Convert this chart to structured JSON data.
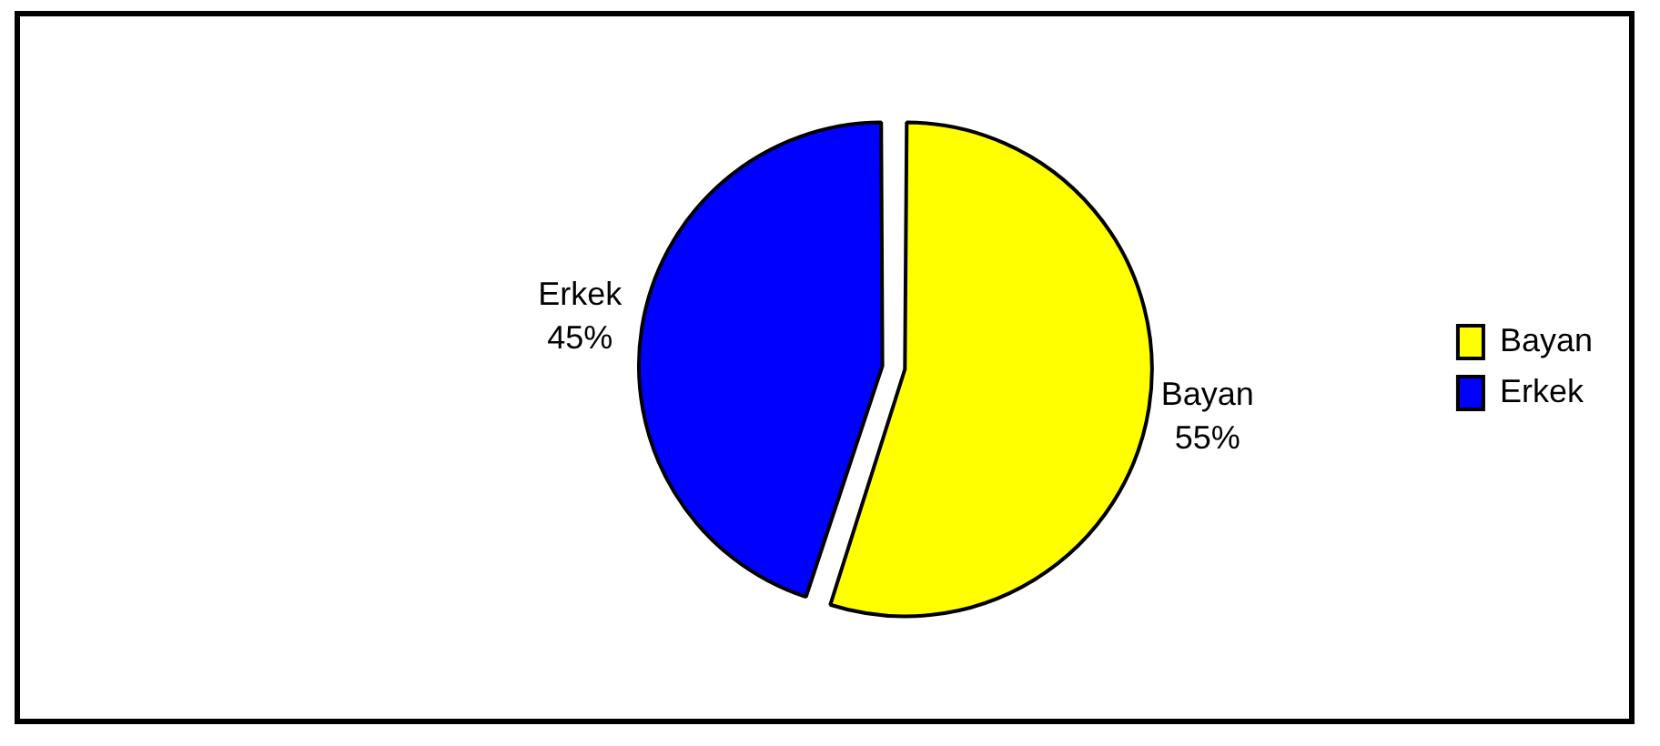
{
  "chart_data": {
    "type": "pie",
    "categories": [
      "Bayan",
      "Erkek"
    ],
    "values": [
      55,
      45
    ],
    "colors": [
      "#ffff00",
      "#0000ff"
    ],
    "value_labels": [
      "55%",
      "45%"
    ],
    "legend": "right"
  }
}
